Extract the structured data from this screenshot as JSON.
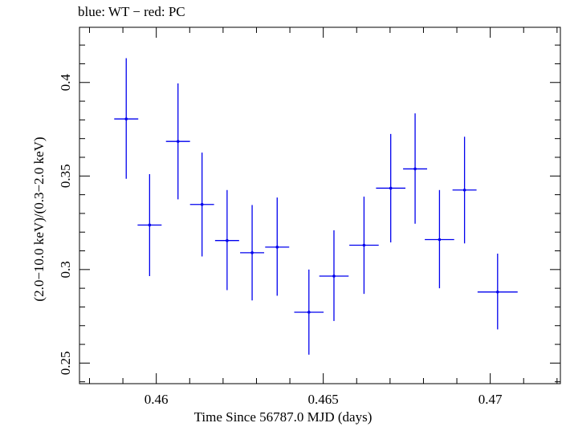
{
  "chart_data": {
    "type": "scatter",
    "title": "blue: WT − red: PC",
    "xlabel": "Time Since 56787.0 MJD (days)",
    "ylabel": "(2.0−10.0 keV)/(0.3−2.0 keV)",
    "xlim": [
      0.4577,
      0.4721
    ],
    "ylim": [
      0.239,
      0.4295
    ],
    "x_ticks": [
      0.46,
      0.465,
      0.47
    ],
    "x_tick_labels": [
      "0.46",
      "0.465",
      "0.47"
    ],
    "y_ticks": [
      0.25,
      0.3,
      0.35,
      0.4
    ],
    "y_tick_labels": [
      "0.25",
      "0.3",
      "0.35",
      "0.4"
    ],
    "grid": false,
    "colors": {
      "series": "#0000ee",
      "axes": "#000000"
    },
    "series": [
      {
        "points": [
          {
            "x": 0.4591,
            "xerr": 0.00036,
            "y": 0.3805,
            "ylo": 0.3485,
            "yhi": 0.413
          },
          {
            "x": 0.4598,
            "xerr": 0.00036,
            "y": 0.3238,
            "ylo": 0.2965,
            "yhi": 0.351
          },
          {
            "x": 0.46065,
            "xerr": 0.00036,
            "y": 0.3685,
            "ylo": 0.3375,
            "yhi": 0.3995
          },
          {
            "x": 0.46137,
            "xerr": 0.00036,
            "y": 0.3348,
            "ylo": 0.307,
            "yhi": 0.3625
          },
          {
            "x": 0.46212,
            "xerr": 0.00036,
            "y": 0.3155,
            "ylo": 0.289,
            "yhi": 0.3425
          },
          {
            "x": 0.46287,
            "xerr": 0.00036,
            "y": 0.309,
            "ylo": 0.2835,
            "yhi": 0.3345
          },
          {
            "x": 0.46362,
            "xerr": 0.00036,
            "y": 0.312,
            "ylo": 0.286,
            "yhi": 0.3385
          },
          {
            "x": 0.46457,
            "xerr": 0.00044,
            "y": 0.2772,
            "ylo": 0.2545,
            "yhi": 0.3
          },
          {
            "x": 0.46532,
            "xerr": 0.00044,
            "y": 0.2965,
            "ylo": 0.2725,
            "yhi": 0.321
          },
          {
            "x": 0.46622,
            "xerr": 0.00044,
            "y": 0.313,
            "ylo": 0.287,
            "yhi": 0.339
          },
          {
            "x": 0.46702,
            "xerr": 0.00044,
            "y": 0.3435,
            "ylo": 0.3145,
            "yhi": 0.3725
          },
          {
            "x": 0.46775,
            "xerr": 0.00036,
            "y": 0.3538,
            "ylo": 0.3245,
            "yhi": 0.3835
          },
          {
            "x": 0.46848,
            "xerr": 0.00044,
            "y": 0.316,
            "ylo": 0.29,
            "yhi": 0.3425
          },
          {
            "x": 0.46923,
            "xerr": 0.00036,
            "y": 0.3425,
            "ylo": 0.314,
            "yhi": 0.371
          },
          {
            "x": 0.47022,
            "xerr": 0.0006,
            "y": 0.288,
            "ylo": 0.268,
            "yhi": 0.3085
          }
        ]
      }
    ]
  }
}
